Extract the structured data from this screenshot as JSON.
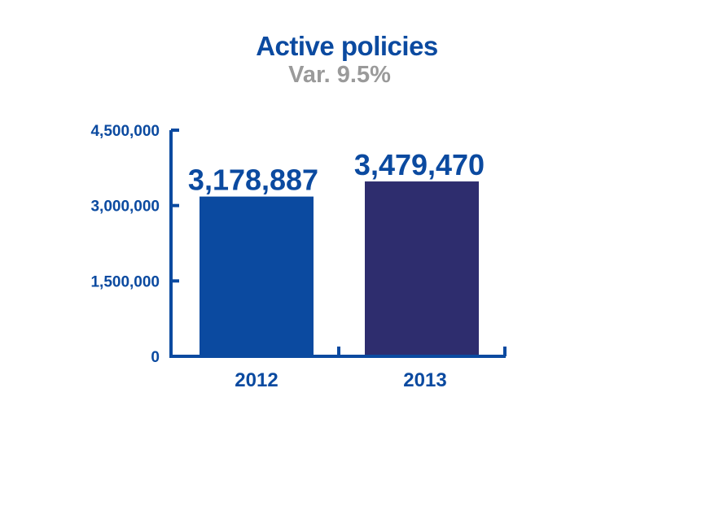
{
  "chart_data": {
    "type": "bar",
    "title": "Active policies",
    "subtitle": "Var. 9.5%",
    "categories": [
      "2012",
      "2013"
    ],
    "values": [
      3178887,
      3479470
    ],
    "value_labels": [
      "3,178,887",
      "3,479,470"
    ],
    "ylim": [
      0,
      4500000
    ],
    "yticks": [
      0,
      1500000,
      3000000,
      4500000
    ],
    "ytick_labels": [
      "0",
      "1,500,000",
      "3,000,000",
      "4,500,000"
    ],
    "xlabel": "",
    "ylabel": "",
    "grid": false,
    "bar_colors": [
      "#0b4aa0",
      "#2e2d6e"
    ],
    "axis_color": "#0b4aa0",
    "text_color": "#0b4aa0"
  }
}
